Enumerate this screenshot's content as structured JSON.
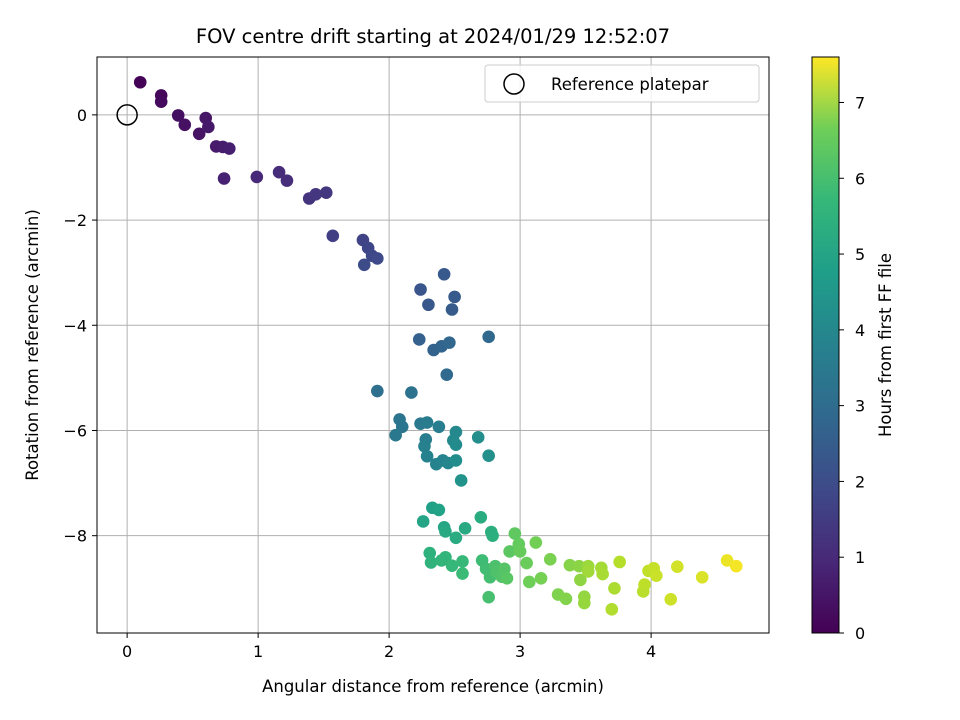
{
  "chart_data": {
    "type": "scatter",
    "title": "FOV centre drift starting at 2024/01/29 12:52:07",
    "xlabel": "Angular distance from reference (arcmin)",
    "ylabel": "Rotation from reference (arcmin)",
    "xlim": [
      -0.23,
      4.9
    ],
    "ylim": [
      -9.85,
      1.1
    ],
    "x_ticks": [
      "0",
      "1",
      "2",
      "3",
      "4"
    ],
    "y_ticks": [
      "0",
      "−2",
      "−4",
      "−6",
      "−8"
    ],
    "x_tick_values": [
      0,
      1,
      2,
      3,
      4
    ],
    "y_tick_values": [
      0,
      -2,
      -4,
      -6,
      -8
    ],
    "grid": true,
    "legend": {
      "placement": "top-right",
      "entries": [
        "Reference platepar"
      ]
    },
    "reference_point": {
      "x": 0,
      "y": 0
    },
    "colorbar": {
      "label": "Hours from first FF file",
      "range": [
        0,
        7.6
      ],
      "ticks": [
        "0",
        "1",
        "2",
        "3",
        "4",
        "5",
        "6",
        "7"
      ],
      "tick_values": [
        0,
        1,
        2,
        3,
        4,
        5,
        6,
        7
      ],
      "colormap": "viridis"
    },
    "points": [
      {
        "x": 0.1,
        "y": 0.62,
        "t": 0.05
      },
      {
        "x": 0.26,
        "y": 0.37,
        "t": 0.15
      },
      {
        "x": 0.26,
        "y": 0.25,
        "t": 0.2
      },
      {
        "x": 0.39,
        "y": -0.01,
        "t": 0.3
      },
      {
        "x": 0.44,
        "y": -0.19,
        "t": 0.35
      },
      {
        "x": 0.55,
        "y": -0.36,
        "t": 0.4
      },
      {
        "x": 0.6,
        "y": -0.06,
        "t": 0.45
      },
      {
        "x": 0.62,
        "y": -0.23,
        "t": 0.5
      },
      {
        "x": 0.68,
        "y": -0.6,
        "t": 0.55
      },
      {
        "x": 0.73,
        "y": -0.61,
        "t": 0.6
      },
      {
        "x": 0.78,
        "y": -0.64,
        "t": 0.65
      },
      {
        "x": 0.74,
        "y": -1.21,
        "t": 0.7
      },
      {
        "x": 0.99,
        "y": -1.18,
        "t": 0.85
      },
      {
        "x": 1.16,
        "y": -1.09,
        "t": 0.95
      },
      {
        "x": 1.22,
        "y": -1.25,
        "t": 1.0
      },
      {
        "x": 1.39,
        "y": -1.59,
        "t": 1.15
      },
      {
        "x": 1.44,
        "y": -1.51,
        "t": 1.2
      },
      {
        "x": 1.52,
        "y": -1.48,
        "t": 1.25
      },
      {
        "x": 1.57,
        "y": -2.3,
        "t": 1.4
      },
      {
        "x": 1.8,
        "y": -2.38,
        "t": 1.55
      },
      {
        "x": 1.84,
        "y": -2.53,
        "t": 1.6
      },
      {
        "x": 1.87,
        "y": -2.68,
        "t": 1.65
      },
      {
        "x": 1.91,
        "y": -2.73,
        "t": 1.7
      },
      {
        "x": 1.81,
        "y": -2.85,
        "t": 1.75
      },
      {
        "x": 2.24,
        "y": -3.32,
        "t": 2.0
      },
      {
        "x": 2.3,
        "y": -3.61,
        "t": 2.05
      },
      {
        "x": 2.42,
        "y": -3.03,
        "t": 2.1
      },
      {
        "x": 2.5,
        "y": -3.46,
        "t": 2.15
      },
      {
        "x": 2.48,
        "y": -3.7,
        "t": 2.2
      },
      {
        "x": 2.23,
        "y": -4.27,
        "t": 2.35
      },
      {
        "x": 2.34,
        "y": -4.47,
        "t": 2.4
      },
      {
        "x": 2.4,
        "y": -4.4,
        "t": 2.45
      },
      {
        "x": 2.46,
        "y": -4.33,
        "t": 2.5
      },
      {
        "x": 2.76,
        "y": -4.22,
        "t": 2.55
      },
      {
        "x": 2.44,
        "y": -4.94,
        "t": 2.6
      },
      {
        "x": 1.91,
        "y": -5.25,
        "t": 2.8
      },
      {
        "x": 2.17,
        "y": -5.28,
        "t": 2.85
      },
      {
        "x": 2.08,
        "y": -5.79,
        "t": 2.95
      },
      {
        "x": 2.1,
        "y": -5.93,
        "t": 3.0
      },
      {
        "x": 2.05,
        "y": -6.09,
        "t": 3.05
      },
      {
        "x": 2.24,
        "y": -5.87,
        "t": 3.1
      },
      {
        "x": 2.29,
        "y": -5.85,
        "t": 3.15
      },
      {
        "x": 2.38,
        "y": -5.93,
        "t": 3.2
      },
      {
        "x": 2.28,
        "y": -6.17,
        "t": 3.25
      },
      {
        "x": 2.27,
        "y": -6.3,
        "t": 3.3
      },
      {
        "x": 2.29,
        "y": -6.49,
        "t": 3.35
      },
      {
        "x": 2.36,
        "y": -6.64,
        "t": 3.4
      },
      {
        "x": 2.41,
        "y": -6.57,
        "t": 3.45
      },
      {
        "x": 2.45,
        "y": -6.62,
        "t": 3.5
      },
      {
        "x": 2.51,
        "y": -6.03,
        "t": 3.55
      },
      {
        "x": 2.49,
        "y": -6.19,
        "t": 3.6
      },
      {
        "x": 2.51,
        "y": -6.27,
        "t": 3.65
      },
      {
        "x": 2.51,
        "y": -6.57,
        "t": 3.7
      },
      {
        "x": 2.68,
        "y": -6.13,
        "t": 3.75
      },
      {
        "x": 2.76,
        "y": -6.48,
        "t": 3.8
      },
      {
        "x": 2.55,
        "y": -6.95,
        "t": 3.9
      },
      {
        "x": 2.33,
        "y": -7.47,
        "t": 4.3
      },
      {
        "x": 2.38,
        "y": -7.51,
        "t": 4.35
      },
      {
        "x": 2.26,
        "y": -7.73,
        "t": 4.45
      },
      {
        "x": 2.42,
        "y": -7.84,
        "t": 4.5
      },
      {
        "x": 2.43,
        "y": -7.92,
        "t": 4.55
      },
      {
        "x": 2.58,
        "y": -7.86,
        "t": 4.6
      },
      {
        "x": 2.51,
        "y": -8.04,
        "t": 4.65
      },
      {
        "x": 2.7,
        "y": -7.65,
        "t": 4.7
      },
      {
        "x": 2.78,
        "y": -7.93,
        "t": 4.75
      },
      {
        "x": 2.79,
        "y": -8.0,
        "t": 4.8
      },
      {
        "x": 2.31,
        "y": -8.33,
        "t": 4.85
      },
      {
        "x": 2.32,
        "y": -8.51,
        "t": 4.9
      },
      {
        "x": 2.4,
        "y": -8.47,
        "t": 4.95
      },
      {
        "x": 2.43,
        "y": -8.41,
        "t": 5.0
      },
      {
        "x": 2.48,
        "y": -8.57,
        "t": 5.05
      },
      {
        "x": 2.56,
        "y": -8.49,
        "t": 5.1
      },
      {
        "x": 2.56,
        "y": -8.72,
        "t": 5.15
      },
      {
        "x": 2.71,
        "y": -8.47,
        "t": 5.2
      },
      {
        "x": 2.74,
        "y": -8.63,
        "t": 5.25
      },
      {
        "x": 2.77,
        "y": -8.79,
        "t": 5.3
      },
      {
        "x": 2.76,
        "y": -9.17,
        "t": 5.35
      },
      {
        "x": 2.81,
        "y": -8.58,
        "t": 5.4
      },
      {
        "x": 2.82,
        "y": -8.69,
        "t": 5.45
      },
      {
        "x": 2.86,
        "y": -8.78,
        "t": 5.5
      },
      {
        "x": 2.88,
        "y": -8.63,
        "t": 5.55
      },
      {
        "x": 2.9,
        "y": -8.81,
        "t": 5.6
      },
      {
        "x": 2.92,
        "y": -8.3,
        "t": 5.65
      },
      {
        "x": 2.96,
        "y": -7.96,
        "t": 5.7
      },
      {
        "x": 2.99,
        "y": -8.16,
        "t": 5.75
      },
      {
        "x": 3.0,
        "y": -8.3,
        "t": 5.8
      },
      {
        "x": 3.05,
        "y": -8.52,
        "t": 5.85
      },
      {
        "x": 3.07,
        "y": -8.88,
        "t": 5.9
      },
      {
        "x": 3.12,
        "y": -8.13,
        "t": 5.95
      },
      {
        "x": 3.16,
        "y": -8.81,
        "t": 6.0
      },
      {
        "x": 3.23,
        "y": -8.45,
        "t": 6.05
      },
      {
        "x": 3.29,
        "y": -9.12,
        "t": 6.1
      },
      {
        "x": 3.35,
        "y": -9.2,
        "t": 6.15
      },
      {
        "x": 3.38,
        "y": -8.56,
        "t": 6.2
      },
      {
        "x": 3.45,
        "y": -8.58,
        "t": 6.25
      },
      {
        "x": 3.46,
        "y": -8.84,
        "t": 6.3
      },
      {
        "x": 3.49,
        "y": -9.16,
        "t": 6.35
      },
      {
        "x": 3.49,
        "y": -9.28,
        "t": 6.4
      },
      {
        "x": 3.52,
        "y": -8.58,
        "t": 6.45
      },
      {
        "x": 3.52,
        "y": -8.68,
        "t": 6.5
      },
      {
        "x": 3.62,
        "y": -8.61,
        "t": 6.55
      },
      {
        "x": 3.63,
        "y": -8.73,
        "t": 6.6
      },
      {
        "x": 3.72,
        "y": -9.0,
        "t": 6.65
      },
      {
        "x": 3.7,
        "y": -9.4,
        "t": 6.7
      },
      {
        "x": 3.76,
        "y": -8.5,
        "t": 6.75
      },
      {
        "x": 3.94,
        "y": -9.06,
        "t": 6.8
      },
      {
        "x": 3.95,
        "y": -8.93,
        "t": 6.85
      },
      {
        "x": 3.98,
        "y": -8.67,
        "t": 6.9
      },
      {
        "x": 4.02,
        "y": -8.62,
        "t": 6.95
      },
      {
        "x": 4.04,
        "y": -8.76,
        "t": 7.0
      },
      {
        "x": 4.15,
        "y": -9.21,
        "t": 7.05
      },
      {
        "x": 4.2,
        "y": -8.59,
        "t": 7.1
      },
      {
        "x": 4.39,
        "y": -8.79,
        "t": 7.2
      },
      {
        "x": 4.58,
        "y": -8.47,
        "t": 7.4
      },
      {
        "x": 4.65,
        "y": -8.58,
        "t": 7.5
      }
    ]
  }
}
